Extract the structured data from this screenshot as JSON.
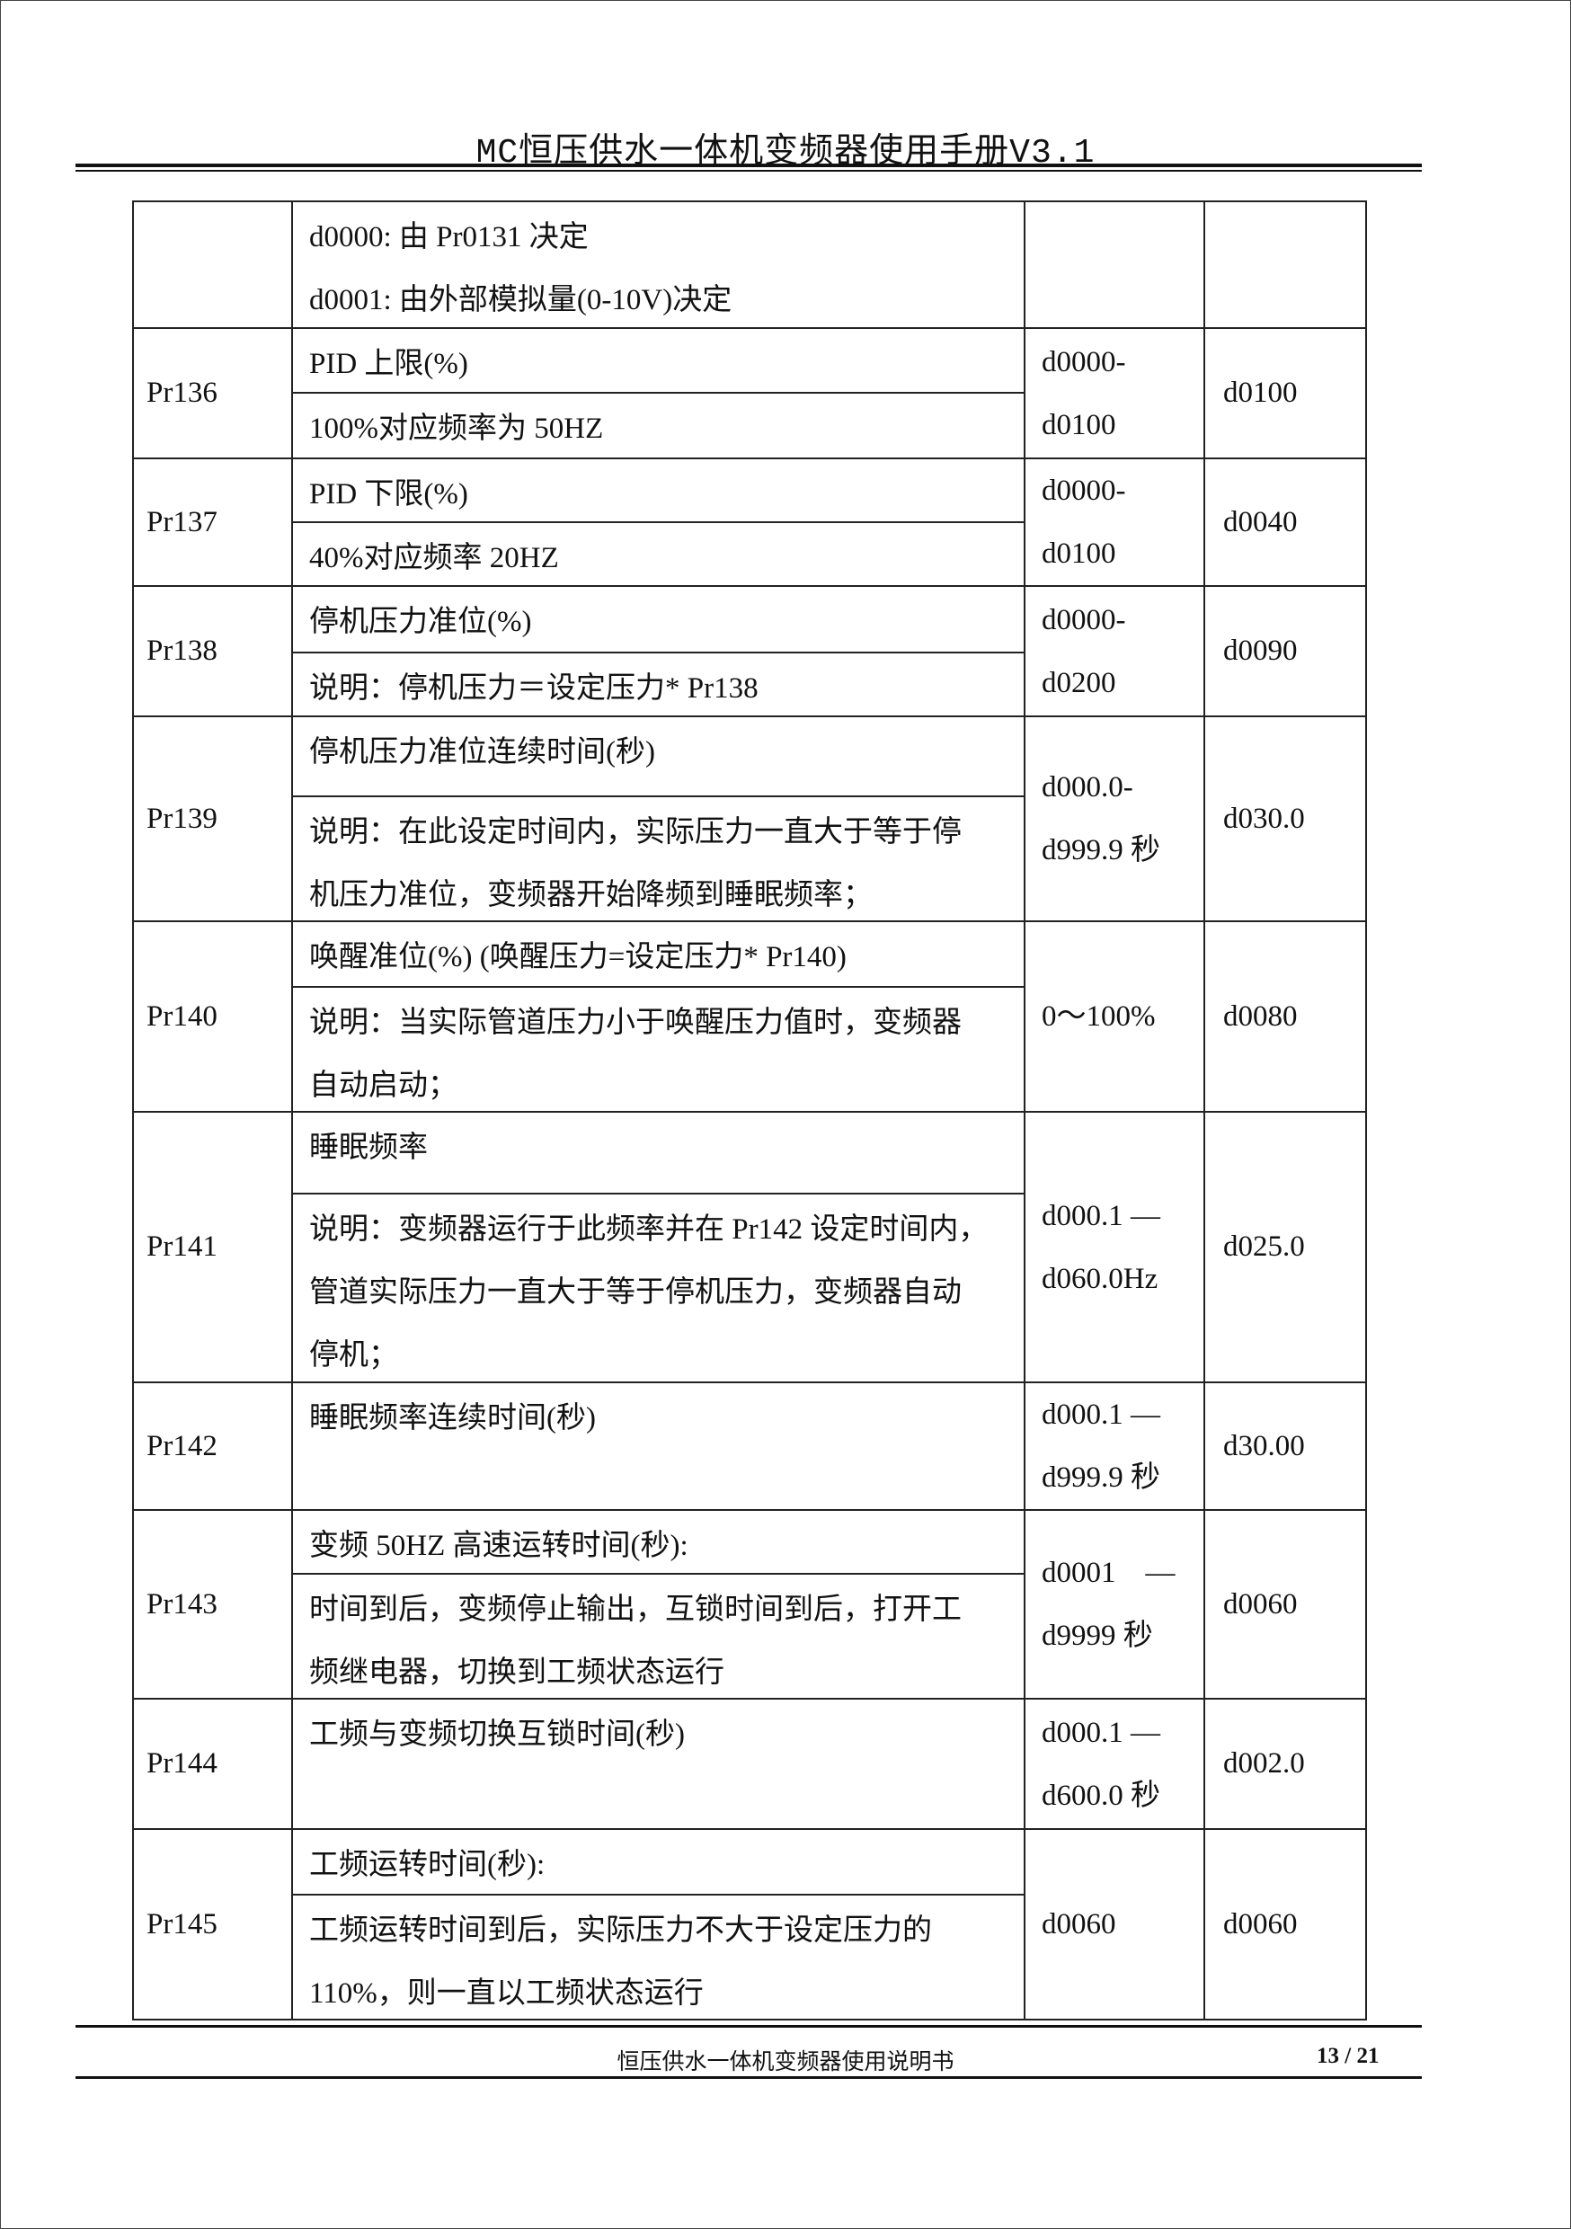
{
  "header": {
    "title": "MC恒压供水一体机变频器使用手册V3.1"
  },
  "footer": {
    "text": "恒压供水一体机变频器使用说明书",
    "page": "13 / 21"
  },
  "table": {
    "rows": [
      {
        "param": "",
        "sections": [
          [
            "d0000: 由 Pr0131 决定",
            "d0001: 由外部模拟量(0-10V)决定"
          ]
        ],
        "range": [],
        "default": ""
      },
      {
        "param": "Pr136",
        "sections": [
          [
            "PID 上限(%)"
          ],
          [
            "100%对应频率为 50HZ"
          ]
        ],
        "range": [
          "d0000-",
          "d0100"
        ],
        "default": "d0100"
      },
      {
        "param": "Pr137",
        "sections": [
          [
            "PID 下限(%)"
          ],
          [
            "40%对应频率 20HZ"
          ]
        ],
        "range": [
          "d0000-",
          "d0100"
        ],
        "default": "d0040"
      },
      {
        "param": "Pr138",
        "sections": [
          [
            "停机压力准位(%)"
          ],
          [
            "说明：停机压力＝设定压力* Pr138"
          ]
        ],
        "range": [
          "d0000-",
          "d0200"
        ],
        "default": "d0090"
      },
      {
        "param": "Pr139",
        "sections": [
          [
            "停机压力准位连续时间(秒)"
          ],
          [
            "说明：在此设定时间内，实际压力一直大于等于停",
            "机压力准位，变频器开始降频到睡眠频率；"
          ]
        ],
        "range": [
          "d000.0-",
          "d999.9 秒"
        ],
        "default": "d030.0"
      },
      {
        "param": "Pr140",
        "sections": [
          [
            "唤醒准位(%) (唤醒压力=设定压力* Pr140)"
          ],
          [
            "说明：当实际管道压力小于唤醒压力值时，变频器",
            "自动启动；"
          ]
        ],
        "range": [
          "0～100%"
        ],
        "default": "d0080"
      },
      {
        "param": "Pr141",
        "sections": [
          [
            "睡眠频率"
          ],
          [
            "说明：变频器运行于此频率并在 Pr142 设定时间内，",
            "管道实际压力一直大于等于停机压力，变频器自动",
            "停机；"
          ]
        ],
        "range": [
          "d000.1 —",
          "d060.0Hz"
        ],
        "default": "d025.0"
      },
      {
        "param": "Pr142",
        "sections": [
          [
            "睡眠频率连续时间(秒)"
          ]
        ],
        "range": [
          "d000.1 —",
          "d999.9 秒"
        ],
        "default": "d30.00"
      },
      {
        "param": "Pr143",
        "sections": [
          [
            "变频 50HZ 高速运转时间(秒):"
          ],
          [
            "时间到后，变频停止输出，互锁时间到后，打开工",
            "频继电器，切换到工频状态运行"
          ]
        ],
        "range": [
          "d0001　—",
          "d9999 秒"
        ],
        "default": "d0060"
      },
      {
        "param": "Pr144",
        "sections": [
          [
            "工频与变频切换互锁时间(秒)"
          ]
        ],
        "range": [
          "d000.1 —",
          "d600.0 秒"
        ],
        "default": "d002.0"
      },
      {
        "param": "Pr145",
        "sections": [
          [
            "工频运转时间(秒):"
          ],
          [
            "工频运转时间到后，实际压力不大于设定压力的",
            "110%，则一直以工频状态运行"
          ]
        ],
        "range": [
          "d0060"
        ],
        "default": "d0060"
      }
    ]
  }
}
